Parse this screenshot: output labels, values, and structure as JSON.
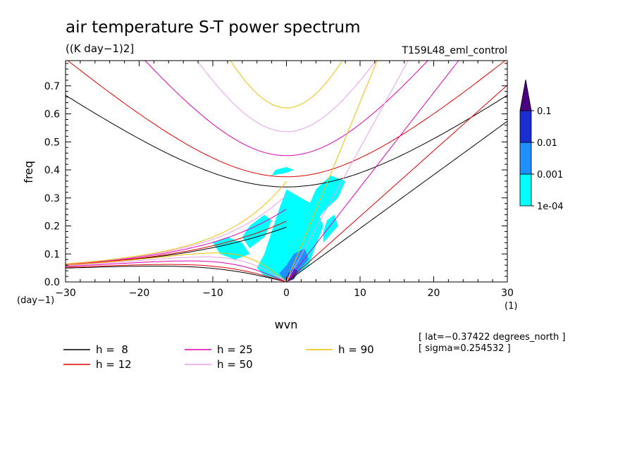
{
  "chart_data": {
    "type": "heatmap",
    "title": "air temperature S-T power spectrum",
    "subtitle": "((K day−1)2]",
    "run_label": "T159L48_eml_control",
    "xlabel": "wvn",
    "ylabel": "freq",
    "x_unit": "(1)",
    "y_unit": "(day−1)",
    "xlim": [
      -30,
      30
    ],
    "ylim": [
      0,
      0.79
    ],
    "xticks": [
      -30,
      -20,
      -10,
      0,
      10,
      20,
      30
    ],
    "yticks": [
      0.0,
      0.1,
      0.2,
      0.3,
      0.4,
      0.5,
      0.6,
      0.7
    ],
    "x_tick_labels": [
      "−30",
      "−20",
      "−10",
      "0",
      "10",
      "20",
      "30"
    ],
    "y_tick_labels": [
      "0.0",
      "0.1",
      "0.2",
      "0.3",
      "0.4",
      "0.5",
      "0.6",
      "0.7"
    ],
    "colorbar": {
      "levels": [
        "1e-04",
        "0.001",
        "0.01",
        "0.1"
      ],
      "colors": [
        "#00ffff",
        "#1e90ff",
        "#1a2fd0",
        "#4b0082"
      ]
    },
    "power_regions": [
      {
        "level": 1,
        "points": [
          [
            0,
            0
          ],
          [
            1,
            0.02
          ],
          [
            3,
            0.06
          ],
          [
            4,
            0.13
          ],
          [
            5,
            0.2
          ],
          [
            4,
            0.27
          ],
          [
            2,
            0.3
          ],
          [
            0,
            0.33
          ],
          [
            -1,
            0.26
          ],
          [
            -2,
            0.18
          ],
          [
            -3,
            0.1
          ],
          [
            -4,
            0.05
          ],
          [
            -3,
            0.02
          ]
        ]
      },
      {
        "level": 1,
        "points": [
          [
            3,
            0.18
          ],
          [
            5,
            0.25
          ],
          [
            7,
            0.3
          ],
          [
            8,
            0.36
          ],
          [
            6,
            0.38
          ],
          [
            4,
            0.33
          ],
          [
            3,
            0.27
          ]
        ]
      },
      {
        "level": 1,
        "points": [
          [
            -10,
            0.14
          ],
          [
            -8,
            0.16
          ],
          [
            -6,
            0.14
          ],
          [
            -5,
            0.1
          ],
          [
            -7,
            0.08
          ],
          [
            -9,
            0.1
          ]
        ]
      },
      {
        "level": 1,
        "points": [
          [
            -5,
            0.12
          ],
          [
            -3,
            0.16
          ],
          [
            -2,
            0.22
          ],
          [
            -3,
            0.24
          ],
          [
            -5,
            0.2
          ],
          [
            -6,
            0.16
          ]
        ]
      },
      {
        "level": 1,
        "points": [
          [
            5,
            0.14
          ],
          [
            6,
            0.17
          ],
          [
            7,
            0.2
          ],
          [
            6.5,
            0.24
          ],
          [
            5.5,
            0.22
          ],
          [
            5,
            0.18
          ]
        ]
      },
      {
        "level": 1,
        "points": [
          [
            -2,
            0.38
          ],
          [
            0,
            0.39
          ],
          [
            1,
            0.4
          ],
          [
            0,
            0.41
          ],
          [
            -1.5,
            0.4
          ]
        ]
      },
      {
        "level": 2,
        "points": [
          [
            0,
            0
          ],
          [
            1,
            0.01
          ],
          [
            2,
            0.05
          ],
          [
            3,
            0.08
          ],
          [
            2.5,
            0.12
          ],
          [
            1,
            0.1
          ],
          [
            0,
            0.06
          ],
          [
            -1,
            0.03
          ]
        ]
      },
      {
        "level": 3,
        "points": [
          [
            0,
            0
          ],
          [
            1,
            0.01
          ],
          [
            1.5,
            0.04
          ],
          [
            1,
            0.05
          ],
          [
            0.2,
            0.03
          ]
        ]
      }
    ],
    "series": [
      {
        "name": "h =  8",
        "h": 8,
        "color": "#000000"
      },
      {
        "name": "h = 12",
        "h": 12,
        "color": "#e00000"
      },
      {
        "name": "h = 25",
        "h": 25,
        "color": "#e000b0"
      },
      {
        "name": "h = 50",
        "h": 50,
        "color": "#e8a0e8"
      },
      {
        "name": "h = 90",
        "h": 90,
        "color": "#f0c000"
      }
    ],
    "annotations": [
      "[ lat=−0.37422 degrees_north ]",
      "[ sigma=0.254532 ]"
    ]
  }
}
